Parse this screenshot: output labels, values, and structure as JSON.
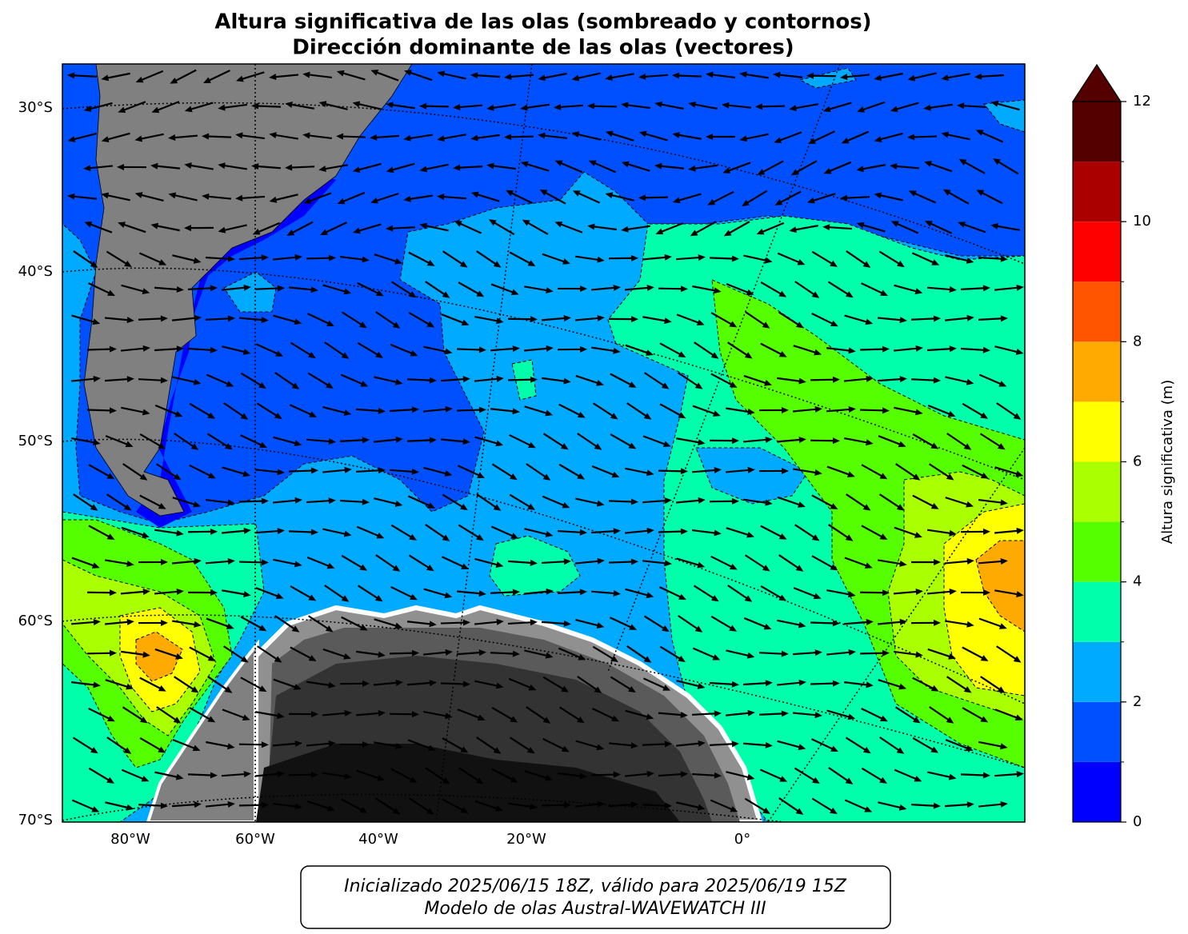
{
  "title": [
    "Altura significativa de las olas (sombreado y contornos)",
    "Dirección dominante de las olas (vectores)"
  ],
  "map": {
    "lat_labels": [
      "30°S",
      "40°S",
      "50°S",
      "60°S",
      "70°S"
    ],
    "lon_labels": [
      "80°W",
      "60°W",
      "40°W",
      "20°W",
      "0°"
    ]
  },
  "colorbar": {
    "label": "Altura significativa (m)",
    "lim": [
      0,
      12
    ],
    "ticks": [
      0,
      2,
      4,
      6,
      8,
      10,
      12
    ],
    "levels": [
      0,
      1,
      2,
      3,
      4,
      5,
      6,
      7,
      8,
      9,
      10,
      11,
      12
    ],
    "extend": "max",
    "colors": [
      "#0000ff",
      "#0050ff",
      "#00aaff",
      "#00ffaa",
      "#55ff00",
      "#aaff00",
      "#ffff00",
      "#ffaa00",
      "#ff5500",
      "#ff0000",
      "#aa0000",
      "#550000"
    ]
  },
  "footer": [
    "Inicializado 2025/06/15 18Z, válido para 2025/06/19 15Z",
    "Modelo de olas Austral-WAVEWATCH III"
  ]
}
